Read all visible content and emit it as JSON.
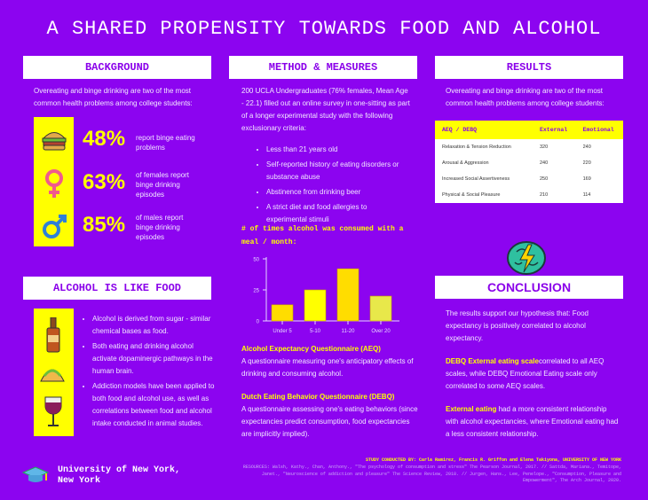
{
  "title": "A SHARED PROPENSITY TOWARDS FOOD AND ALCOHOL",
  "background": {
    "header": "BACKGROUND",
    "intro": "Overeating and binge drinking are two of the most common health problems among college students:",
    "stats": [
      {
        "icon": "burger-icon",
        "value": "48%",
        "text": "report binge eating problems"
      },
      {
        "icon": "female-symbol-icon",
        "value": "63%",
        "text": "of females report binge drinking episodes"
      },
      {
        "icon": "male-symbol-icon",
        "value": "85%",
        "text": "of males report binge drinking episodes"
      }
    ]
  },
  "alcohol": {
    "header": "ALCOHOL IS LIKE FOOD",
    "bullets": [
      "Alcohol is derived from sugar - similar chemical bases as food.",
      "Both eating and drinking alcohol activate dopaminergic pathways in the human brain.",
      "Addiction models have been applied to both food and alcohol use, as well as correlations between food and alcohol intake conducted in animal studies."
    ],
    "icons": [
      "liquor-bottle-icon",
      "taco-icon",
      "wine-glass-icon"
    ]
  },
  "method": {
    "header": "METHOD & MEASURES",
    "intro": "200 UCLA Undergraduates (76% females, Mean Age - 22.1) filled out an online survey in one-sitting as part of a longer experimental study with the following exclusionary criteria:",
    "bullets": [
      "Less than 21 years old",
      "Self-reported history of eating disorders or substance abuse",
      "Abstinence from drinking beer",
      "A strict diet and food allergies to experimental stimuli"
    ],
    "aeq_title": "Alcohol Expectancy Questionnaire (AEQ)",
    "aeq_text": "A questionnaire measuring one's anticipatory effects of drinking and consuming alcohol.",
    "debq_title": "Dutch Eating Behavior Questionnaire (DEBQ)",
    "debq_text": "A questionnaire assessing one's eating behaviors (since expectancies predict consumption, food expectancies are implicitly implied)."
  },
  "chart_data": {
    "type": "bar",
    "title": "# of times alcohol was consumed with a meal / month:",
    "categories": [
      "Under 5",
      "5-10",
      "11-20",
      "Over 20"
    ],
    "values": [
      13,
      25,
      42,
      20
    ],
    "ylim": [
      0,
      50
    ],
    "yticks": [
      0,
      25,
      50
    ],
    "colors": [
      "#ffdd00",
      "#ffff00",
      "#ffdd00",
      "#e8e84a"
    ]
  },
  "results": {
    "header": "RESULTS",
    "intro": "Overeating and binge drinking are two of the most common health problems among college students:",
    "table": {
      "columns": [
        "AEQ / DEBQ",
        "External",
        "Emotional"
      ],
      "rows": [
        [
          "Relaxation & Tension Reduction",
          "320",
          "240"
        ],
        [
          "Arousal & Aggression",
          "240",
          "220"
        ],
        [
          "Increased Social Assertiveness",
          "250",
          "169"
        ],
        [
          "Physical & Social Pleasure",
          "210",
          "114"
        ]
      ]
    }
  },
  "conclusion": {
    "header": "CONCLUSION",
    "p1": "The results support our hypothesis that: Food expectancy is positively correlated to alcohol expectancy.",
    "p2_highlight": "DEBQ External eating scale",
    "p2_rest": "correlated to all AEQ scales, while DEBQ Emotional Eating scale only correlated to some AEQ scales.",
    "p3_highlight": "External eating",
    "p3_rest": " had a more consistent relationship with alcohol expectancies, where Emotional eating had a less consistent relationship."
  },
  "footer": {
    "university": "University of New York, New York",
    "study": "STUDY CONDUCTED BY: Carla Ramirez, Francis R. Griffon and Elena Takiyona, UNIVERSITY OF NEW YORK",
    "resources": "RESOURCES: Walsh, Kathy., Chan, Anthony., \"The psychology of consumption and stress\" The Pearson Journal, 2017. // Sattda, Mariana., Temitope, Janet., \"Neuroscience of addiction and pleasure\" The Science Review, 2018. // Jurgen, Hans., Lee, Penelope., \"Consumption, Pleasure and Empowerment\", The Arch Journal, 2020."
  }
}
